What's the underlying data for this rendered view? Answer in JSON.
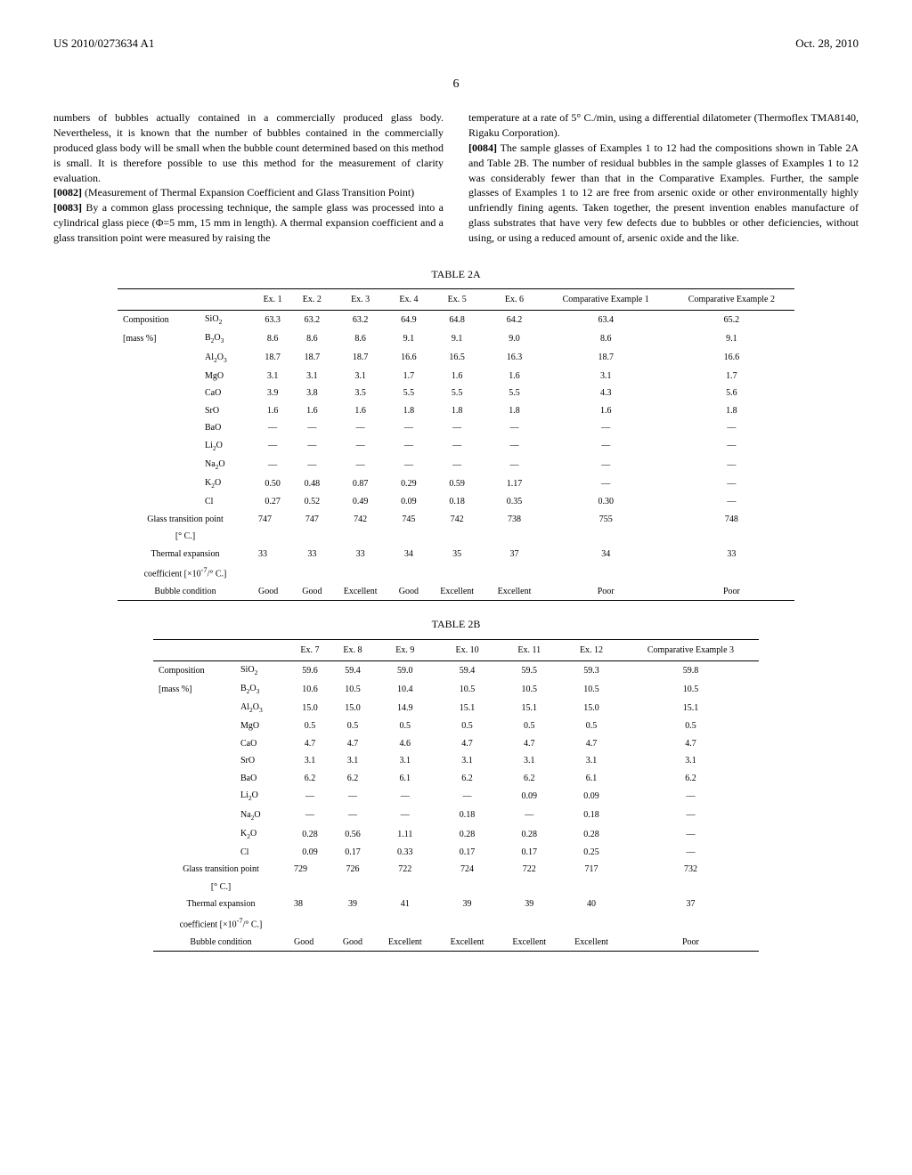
{
  "header": {
    "pub_number": "US 2010/0273634 A1",
    "date": "Oct. 28, 2010",
    "page_number": "6"
  },
  "left_column": {
    "p1": "numbers of bubbles actually contained in a commercially produced glass body. Nevertheless, it is known that the number of bubbles contained in the commercially produced glass body will be small when the bubble count determined based on this method is small. It is therefore possible to use this method for the measurement of clarity evaluation.",
    "p2_num": "[0082]",
    "p2": " (Measurement of Thermal Expansion Coefficient and Glass Transition Point)",
    "p3_num": "[0083]",
    "p3": " By a common glass processing technique, the sample glass was processed into a cylindrical glass piece (Φ=5 mm, 15 mm in length). A thermal expansion coefficient and a glass transition point were measured by raising the"
  },
  "right_column": {
    "p1": "temperature at a rate of 5° C./min, using a differential dilatometer (Thermoflex TMA8140, Rigaku Corporation).",
    "p2_num": "[0084]",
    "p2": " The sample glasses of Examples 1 to 12 had the compositions shown in Table 2A and Table 2B. The number of residual bubbles in the sample glasses of Examples 1 to 12 was considerably fewer than that in the Comparative Examples. Further, the sample glasses of Examples 1 to 12 are free from arsenic oxide or other environmentally highly unfriendly fining agents. Taken together, the present invention enables manufacture of glass substrates that have very few defects due to bubbles or other deficiencies, without using, or using a reduced amount of, arsenic oxide and the like."
  },
  "table2a": {
    "title": "TABLE 2A",
    "headers": [
      "",
      "",
      "Ex. 1",
      "Ex. 2",
      "Ex. 3",
      "Ex. 4",
      "Ex. 5",
      "Ex. 6",
      "Comparative Example 1",
      "Comparative Example 2"
    ],
    "rows": [
      [
        "Composition",
        "SiO₂",
        "63.3",
        "63.2",
        "63.2",
        "64.9",
        "64.8",
        "64.2",
        "63.4",
        "65.2"
      ],
      [
        "[mass %]",
        "B₂O₃",
        "8.6",
        "8.6",
        "8.6",
        "9.1",
        "9.1",
        "9.0",
        "8.6",
        "9.1"
      ],
      [
        "",
        "Al₂O₃",
        "18.7",
        "18.7",
        "18.7",
        "16.6",
        "16.5",
        "16.3",
        "18.7",
        "16.6"
      ],
      [
        "",
        "MgO",
        "3.1",
        "3.1",
        "3.1",
        "1.7",
        "1.6",
        "1.6",
        "3.1",
        "1.7"
      ],
      [
        "",
        "CaO",
        "3.9",
        "3.8",
        "3.5",
        "5.5",
        "5.5",
        "5.5",
        "4.3",
        "5.6"
      ],
      [
        "",
        "SrO",
        "1.6",
        "1.6",
        "1.6",
        "1.8",
        "1.8",
        "1.8",
        "1.6",
        "1.8"
      ],
      [
        "",
        "BaO",
        "—",
        "—",
        "—",
        "—",
        "—",
        "—",
        "—",
        "—"
      ],
      [
        "",
        "Li₂O",
        "—",
        "—",
        "—",
        "—",
        "—",
        "—",
        "—",
        "—"
      ],
      [
        "",
        "Na₂O",
        "—",
        "—",
        "—",
        "—",
        "—",
        "—",
        "—",
        "—"
      ],
      [
        "",
        "K₂O",
        "0.50",
        "0.48",
        "0.87",
        "0.29",
        "0.59",
        "1.17",
        "—",
        "—"
      ],
      [
        "",
        "Cl",
        "0.27",
        "0.52",
        "0.49",
        "0.09",
        "0.18",
        "0.35",
        "0.30",
        "—"
      ]
    ],
    "gtp_label": "Glass transition point",
    "gtp_unit": "[° C.]",
    "gtp": [
      "747",
      "747",
      "742",
      "745",
      "742",
      "738",
      "755",
      "748"
    ],
    "te_label": "Thermal expansion",
    "te_unit": "coefficient [×10⁻⁷/° C.]",
    "te": [
      "33",
      "33",
      "33",
      "34",
      "35",
      "37",
      "34",
      "33"
    ],
    "bubble_label": "Bubble condition",
    "bubble": [
      "Good",
      "Good",
      "Excellent",
      "Good",
      "Excellent",
      "Excellent",
      "Poor",
      "Poor"
    ]
  },
  "table2b": {
    "title": "TABLE 2B",
    "headers": [
      "",
      "",
      "Ex. 7",
      "Ex. 8",
      "Ex. 9",
      "Ex. 10",
      "Ex. 11",
      "Ex. 12",
      "Comparative Example 3"
    ],
    "rows": [
      [
        "Composition",
        "SiO₂",
        "59.6",
        "59.4",
        "59.0",
        "59.4",
        "59.5",
        "59.3",
        "59.8"
      ],
      [
        "[mass %]",
        "B₂O₃",
        "10.6",
        "10.5",
        "10.4",
        "10.5",
        "10.5",
        "10.5",
        "10.5"
      ],
      [
        "",
        "Al₂O₃",
        "15.0",
        "15.0",
        "14.9",
        "15.1",
        "15.1",
        "15.0",
        "15.1"
      ],
      [
        "",
        "MgO",
        "0.5",
        "0.5",
        "0.5",
        "0.5",
        "0.5",
        "0.5",
        "0.5"
      ],
      [
        "",
        "CaO",
        "4.7",
        "4.7",
        "4.6",
        "4.7",
        "4.7",
        "4.7",
        "4.7"
      ],
      [
        "",
        "SrO",
        "3.1",
        "3.1",
        "3.1",
        "3.1",
        "3.1",
        "3.1",
        "3.1"
      ],
      [
        "",
        "BaO",
        "6.2",
        "6.2",
        "6.1",
        "6.2",
        "6.2",
        "6.1",
        "6.2"
      ],
      [
        "",
        "Li₂O",
        "—",
        "—",
        "—",
        "—",
        "0.09",
        "0.09",
        "—"
      ],
      [
        "",
        "Na₂O",
        "—",
        "—",
        "—",
        "0.18",
        "—",
        "0.18",
        "—"
      ],
      [
        "",
        "K₂O",
        "0.28",
        "0.56",
        "1.11",
        "0.28",
        "0.28",
        "0.28",
        "—"
      ],
      [
        "",
        "Cl",
        "0.09",
        "0.17",
        "0.33",
        "0.17",
        "0.17",
        "0.25",
        "—"
      ]
    ],
    "gtp_label": "Glass transition point",
    "gtp_unit": "[° C.]",
    "gtp": [
      "729",
      "726",
      "722",
      "724",
      "722",
      "717",
      "732"
    ],
    "te_label": "Thermal expansion",
    "te_unit": "coefficient [×10⁻⁷/° C.]",
    "te": [
      "38",
      "39",
      "41",
      "39",
      "39",
      "40",
      "37"
    ],
    "bubble_label": "Bubble condition",
    "bubble": [
      "Good",
      "Good",
      "Excellent",
      "Excellent",
      "Excellent",
      "Excellent",
      "Poor"
    ]
  }
}
